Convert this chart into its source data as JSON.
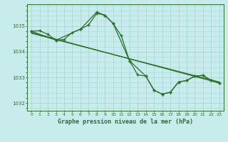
{
  "title": "Graphe pression niveau de la mer (hPa)",
  "background_color": "#c8ecec",
  "grid_color": "#a8d8d8",
  "line_color": "#2d6e2d",
  "xlim": [
    -0.5,
    23.5
  ],
  "ylim": [
    1031.7,
    1035.85
  ],
  "yticks": [
    1032,
    1033,
    1034,
    1035
  ],
  "xticks": [
    0,
    1,
    2,
    3,
    4,
    5,
    6,
    7,
    8,
    9,
    10,
    11,
    12,
    13,
    14,
    15,
    16,
    17,
    18,
    19,
    20,
    21,
    22,
    23
  ],
  "series_hourly": {
    "x": [
      0,
      1,
      2,
      3,
      4,
      5,
      6,
      7,
      8,
      9,
      10,
      11,
      12,
      13,
      14,
      15,
      16,
      17,
      18,
      19,
      20,
      21,
      22,
      23
    ],
    "y": [
      1034.8,
      1034.82,
      1034.68,
      1034.45,
      1034.48,
      1034.75,
      1034.88,
      1035.05,
      1035.5,
      1035.42,
      1035.1,
      1034.62,
      1033.65,
      1033.1,
      1033.05,
      1032.5,
      1032.35,
      1032.42,
      1032.82,
      1032.88,
      1033.05,
      1033.08,
      1032.88,
      1032.78
    ]
  },
  "series_straight1": {
    "x": [
      0,
      23
    ],
    "y": [
      1034.75,
      1032.78
    ]
  },
  "series_straight2": {
    "x": [
      0,
      23
    ],
    "y": [
      1034.72,
      1032.82
    ]
  },
  "series_peak": {
    "x": [
      0,
      3,
      6,
      8,
      9,
      10,
      12,
      14,
      15,
      16,
      17,
      18,
      19,
      20,
      21,
      22,
      23
    ],
    "y": [
      1034.8,
      1034.45,
      1034.88,
      1035.55,
      1035.42,
      1035.1,
      1033.65,
      1033.05,
      1032.5,
      1032.35,
      1032.42,
      1032.82,
      1032.88,
      1033.05,
      1033.08,
      1032.88,
      1032.78
    ]
  }
}
